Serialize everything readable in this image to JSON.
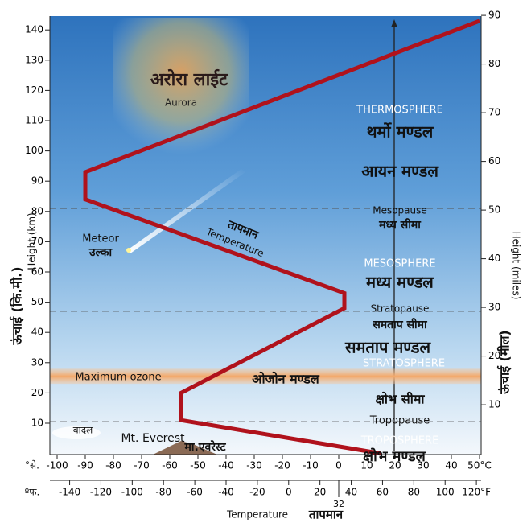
{
  "diagram": {
    "labels": {
      "aurora_hi": "अरोरा लाईट",
      "aurora": "Aurora",
      "thermosphere": "THERMOSPHERE",
      "thermosphere_hi": "थर्मो मण्डल",
      "ionosphere_hi": "आयन मण्डल",
      "mesopause": "Mesopause",
      "mesopause_hi": "मध्य सीमा",
      "meteor": "Meteor",
      "meteor_hi": "उल्का",
      "temperature_hi": "तापमान",
      "temperature": "Temperature",
      "mesosphere": "MESOSPHERE",
      "mesosphere_hi": "मध्य मण्डल",
      "stratopause": "Stratopause",
      "stratopause_hi": "समताप सीमा",
      "stratosphere_hi": "समताप मण्डल",
      "stratosphere": "STRATOSPHERE",
      "ozone": "Maximum ozone",
      "ozone_hi": "ओजोन मण्डल",
      "tropopause_hi": "क्षोभ सीमा",
      "tropopause": "Tropopause",
      "clouds_hi": "बादल",
      "everest": "Mt. Everest",
      "everest_hi": "मा.एवरेस्ट",
      "troposphere": "TROPOSPHERE",
      "troposphere_hi": "क्षोभ मण्डल"
    },
    "axes": {
      "height_km": "Height (km)",
      "height_km_hi": "ऊंचाई (कि.मी.)",
      "height_miles": "Height (miles)",
      "height_miles_hi": "ऊंचाई (मील)",
      "temperature": "Temperature",
      "temperature_hi": "तापमान",
      "celsius_prefix": "°से.",
      "fahrenheit_prefix": "ºफ.",
      "km_ticks": [
        10,
        20,
        30,
        40,
        50,
        60,
        70,
        80,
        90,
        100,
        110,
        120,
        130,
        140
      ],
      "mile_ticks": [
        10,
        20,
        30,
        40,
        50,
        60,
        70,
        80,
        90
      ],
      "celsius_ticks": [
        -100,
        -90,
        -80,
        -70,
        -60,
        -50,
        -40,
        -30,
        -20,
        -10,
        0,
        10,
        20,
        30,
        40,
        {
          "value": 50,
          "label": "50°C"
        }
      ],
      "fahrenheit_ticks": [
        -140,
        -120,
        -100,
        -80,
        -60,
        -40,
        -20,
        0,
        20,
        40,
        60,
        80,
        100,
        {
          "value": 120,
          "label": "120°F"
        }
      ],
      "fahrenheit_mark": 32
    },
    "temperature_curve": {
      "celsius": [
        15,
        -56,
        -56,
        2,
        2,
        -90,
        -90,
        50
      ],
      "km": [
        0,
        11,
        20,
        48,
        53,
        84,
        93,
        143
      ]
    },
    "pauses_km": [
      81,
      47,
      10.5
    ],
    "ozone_km": [
      23,
      28
    ]
  }
}
